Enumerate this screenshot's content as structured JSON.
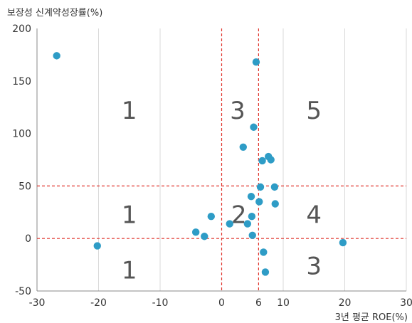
{
  "chart_data": {
    "type": "scatter",
    "title": "",
    "xlabel": "3년 평균 ROE(%)",
    "ylabel": "보장성 신계약성장률(%)",
    "xlim": [
      -30,
      30
    ],
    "ylim": [
      -50,
      200
    ],
    "xticks": [
      -30,
      -20,
      -10,
      0,
      6,
      10,
      20,
      30
    ],
    "xtick_labels": [
      "-30",
      "-20",
      "-10",
      "0",
      "6",
      "10",
      "20",
      "30"
    ],
    "yticks": [
      -50,
      0,
      50,
      100,
      150,
      200
    ],
    "ytick_labels": [
      "-50",
      "0",
      "50",
      "100",
      "150",
      "200"
    ],
    "grid": "vertical",
    "reference_lines": {
      "x": [
        0,
        6
      ],
      "y": [
        0,
        50
      ]
    },
    "zone_labels": [
      {
        "text": "1",
        "x": -15,
        "y": 122
      },
      {
        "text": "3",
        "x": 2.6,
        "y": 122
      },
      {
        "text": "5",
        "x": 15,
        "y": 122
      },
      {
        "text": "1",
        "x": -15,
        "y": 23
      },
      {
        "text": "2",
        "x": 2.8,
        "y": 23
      },
      {
        "text": "4",
        "x": 15,
        "y": 23
      },
      {
        "text": "1",
        "x": -15,
        "y": -30
      },
      {
        "text": "3",
        "x": 15,
        "y": -26
      }
    ],
    "points": [
      {
        "x": -26.8,
        "y": 174
      },
      {
        "x": -20.2,
        "y": -7
      },
      {
        "x": -4.2,
        "y": 6
      },
      {
        "x": -2.8,
        "y": 2
      },
      {
        "x": -1.7,
        "y": 21
      },
      {
        "x": 1.3,
        "y": 14
      },
      {
        "x": 3.5,
        "y": 87
      },
      {
        "x": 4.2,
        "y": 14
      },
      {
        "x": 4.8,
        "y": 40
      },
      {
        "x": 4.9,
        "y": 21
      },
      {
        "x": 5.0,
        "y": 3
      },
      {
        "x": 5.2,
        "y": 106
      },
      {
        "x": 5.6,
        "y": 168
      },
      {
        "x": 6.1,
        "y": 35
      },
      {
        "x": 6.3,
        "y": 49
      },
      {
        "x": 6.6,
        "y": 74
      },
      {
        "x": 6.8,
        "y": -13
      },
      {
        "x": 7.1,
        "y": -32
      },
      {
        "x": 7.6,
        "y": 78
      },
      {
        "x": 8.0,
        "y": 75
      },
      {
        "x": 8.6,
        "y": 49
      },
      {
        "x": 8.7,
        "y": 33
      },
      {
        "x": 19.7,
        "y": -4
      }
    ],
    "colors": {
      "point": "#2e9cc6",
      "ref_line": "#e0342c",
      "grid": "#d9d9d9",
      "axis": "#888888"
    }
  }
}
